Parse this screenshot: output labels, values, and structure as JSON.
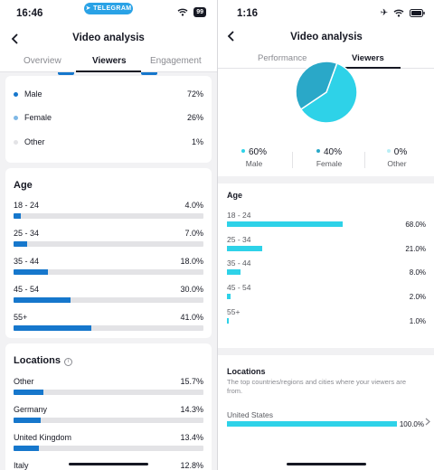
{
  "left": {
    "status": {
      "time": "16:46",
      "telegram": "TELEGRAM",
      "battery": "99"
    },
    "header": {
      "title": "Video analysis"
    },
    "tabs": [
      {
        "label": "Overview",
        "active": false
      },
      {
        "label": "Viewers",
        "active": true
      },
      {
        "label": "Engagement",
        "active": false
      }
    ],
    "gender": [
      {
        "label": "Male",
        "pct": "72%",
        "color": "#1677cc"
      },
      {
        "label": "Female",
        "pct": "26%",
        "color": "#7fb8e6"
      },
      {
        "label": "Other",
        "pct": "1%",
        "color": "#e3e3e6"
      }
    ],
    "age": {
      "title": "Age",
      "rows": [
        {
          "label": "18 - 24",
          "pct": "4.0%",
          "value": 4.0
        },
        {
          "label": "25 - 34",
          "pct": "7.0%",
          "value": 7.0
        },
        {
          "label": "35 - 44",
          "pct": "18.0%",
          "value": 18.0
        },
        {
          "label": "45 - 54",
          "pct": "30.0%",
          "value": 30.0
        },
        {
          "label": "55+",
          "pct": "41.0%",
          "value": 41.0
        }
      ]
    },
    "locations": {
      "title": "Locations",
      "rows": [
        {
          "label": "Other",
          "pct": "15.7%",
          "value": 15.7
        },
        {
          "label": "Germany",
          "pct": "14.3%",
          "value": 14.3
        },
        {
          "label": "United Kingdom",
          "pct": "13.4%",
          "value": 13.4
        },
        {
          "label": "Italy",
          "pct": "12.8%",
          "value": 12.8
        }
      ]
    },
    "accent": "#1677cc"
  },
  "right": {
    "status": {
      "time": "1:16"
    },
    "header": {
      "title": "Video analysis"
    },
    "tabs": [
      {
        "label": "Performance",
        "active": false
      },
      {
        "label": "Viewers",
        "active": true
      }
    ],
    "gender": [
      {
        "label": "Male",
        "pct": "60%",
        "value": 60,
        "color": "#2ed2e8"
      },
      {
        "label": "Female",
        "pct": "40%",
        "value": 40,
        "color": "#2aa8c8"
      },
      {
        "label": "Other",
        "pct": "0%",
        "value": 0,
        "color": "#b9eef5"
      }
    ],
    "age": {
      "title": "Age",
      "rows": [
        {
          "label": "18 - 24",
          "pct": "68.0%",
          "value": 68.0
        },
        {
          "label": "25 - 34",
          "pct": "21.0%",
          "value": 21.0
        },
        {
          "label": "35 - 44",
          "pct": "8.0%",
          "value": 8.0
        },
        {
          "label": "45 - 54",
          "pct": "2.0%",
          "value": 2.0
        },
        {
          "label": "55+",
          "pct": "1.0%",
          "value": 1.0
        }
      ]
    },
    "locations": {
      "title": "Locations",
      "description": "The top countries/regions and cities where your viewers are from.",
      "rows": [
        {
          "label": "United States",
          "pct": "100.0%",
          "value": 100.0
        }
      ]
    },
    "accent": "#2ed2e8"
  }
}
